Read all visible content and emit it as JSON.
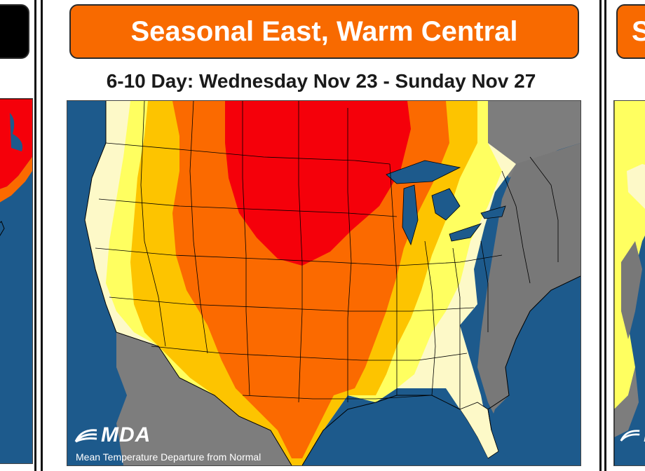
{
  "panels": {
    "left": {
      "header_text": ""
    },
    "main": {
      "header_text": "Seasonal East, Warm Central",
      "subtitle": "6-10 Day: Wednesday Nov 23 - Sunday Nov 27",
      "logo_text": "MDA",
      "caption": "Mean Temperature Departure from Normal"
    },
    "right": {
      "header_text": "S",
      "logo_text": "M"
    }
  },
  "colors": {
    "ocean": "#1d5a8c",
    "header_orange": "#f86a00",
    "much_above": "#f5000a",
    "above": "#fb6a00",
    "slightly_above": "#fdc400",
    "mild_above": "#ffff60",
    "near_normal": "#fdf9c8",
    "below_normal": "#787878",
    "non_us_land": "#7d7d7d"
  }
}
